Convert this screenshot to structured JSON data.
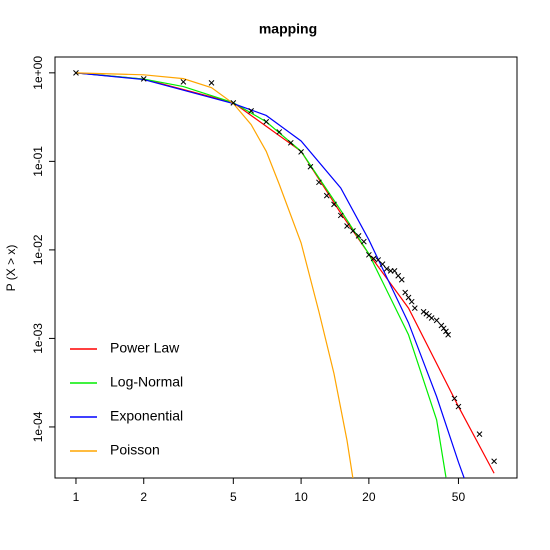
{
  "chart_data": {
    "type": "scatter",
    "title": "mapping",
    "ylabel": "P (X > x)",
    "log_x": true,
    "log_y": true,
    "xlim": [
      0.807,
      91
    ],
    "ylim": [
      2.65e-05,
      1.51
    ],
    "xticks": [
      1,
      2,
      5,
      10,
      20,
      50
    ],
    "yticks": [
      {
        "value": 1,
        "label": "1e+00"
      },
      {
        "value": 0.1,
        "label": "1e-01"
      },
      {
        "value": 0.01,
        "label": "1e-02"
      },
      {
        "value": 0.001,
        "label": "1e-03"
      },
      {
        "value": 0.0001,
        "label": "1e-04"
      }
    ],
    "legend": "bottom-left",
    "point_color": "#000000",
    "x": [
      1,
      2,
      3,
      4,
      5,
      6,
      7,
      8,
      9,
      10,
      11,
      12,
      13,
      14,
      15,
      16,
      17,
      18,
      19,
      20,
      21,
      22,
      23,
      24,
      25,
      26,
      27,
      28,
      29,
      30,
      31,
      32,
      35,
      36,
      37,
      38,
      40,
      42,
      43,
      44,
      45,
      48,
      50,
      62,
      72
    ],
    "values": [
      1,
      0.855,
      0.79,
      0.77,
      0.458,
      0.372,
      0.28,
      0.215,
      0.162,
      0.128,
      0.087,
      0.058,
      0.041,
      0.0327,
      0.0245,
      0.0186,
      0.0164,
      0.0144,
      0.0124,
      0.0088,
      0.008,
      0.0077,
      0.0069,
      0.0061,
      0.0058,
      0.0058,
      0.0051,
      0.0046,
      0.0033,
      0.0029,
      0.0026,
      0.0022,
      0.002,
      0.0019,
      0.0018,
      0.0017,
      0.0016,
      0.0014,
      0.0013,
      0.0012,
      0.0011,
      0.00021,
      0.00017,
      8.3e-05,
      4.1e-05
    ],
    "series": [
      {
        "name": "Power Law",
        "color": "#ff0000",
        "x": [
          1,
          2,
          5,
          10,
          15,
          20,
          30,
          50,
          72
        ],
        "values": [
          1,
          0.85,
          0.46,
          0.13,
          0.026,
          0.009,
          0.0022,
          0.00017,
          3e-05
        ]
      },
      {
        "name": "Log-Normal",
        "color": "#00ee00",
        "x": [
          1,
          2,
          3,
          5,
          7,
          10,
          15,
          20,
          30,
          40,
          44
        ],
        "values": [
          1,
          0.85,
          0.7,
          0.46,
          0.28,
          0.13,
          0.028,
          0.009,
          0.0011,
          0.00012,
          2.7e-05
        ]
      },
      {
        "name": "Exponential",
        "color": "#0000ff",
        "x": [
          1,
          2,
          5,
          7,
          10,
          15,
          20,
          30,
          40,
          50,
          53
        ],
        "values": [
          1,
          0.84,
          0.45,
          0.33,
          0.17,
          0.05,
          0.013,
          0.0015,
          0.00022,
          4e-05,
          2.65e-05
        ]
      },
      {
        "name": "Poisson",
        "color": "#ffa500",
        "x": [
          1,
          2,
          3,
          4,
          5,
          6,
          7,
          8,
          10,
          12,
          14,
          16,
          17
        ],
        "values": [
          1,
          0.95,
          0.86,
          0.68,
          0.45,
          0.26,
          0.13,
          0.055,
          0.012,
          0.002,
          0.0004,
          7e-05,
          2.6e-05
        ]
      }
    ]
  }
}
